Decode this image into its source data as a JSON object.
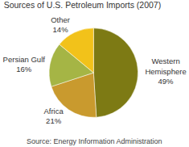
{
  "chart_data": {
    "type": "pie",
    "title": "Sources of U.S. Petroleum Imports (2007)",
    "annotations": [
      "Source: Energy Information Administration"
    ],
    "categories": [
      "Western Hemisphere",
      "Africa",
      "Persian Gulf",
      "Other"
    ],
    "values": [
      49,
      21,
      16,
      14
    ],
    "value_labels": [
      "49%",
      "21%",
      "16%",
      "14%"
    ],
    "colors": [
      "#7d7a14",
      "#c99a2e",
      "#a5b545",
      "#f2c21a"
    ],
    "data_labels": true
  }
}
